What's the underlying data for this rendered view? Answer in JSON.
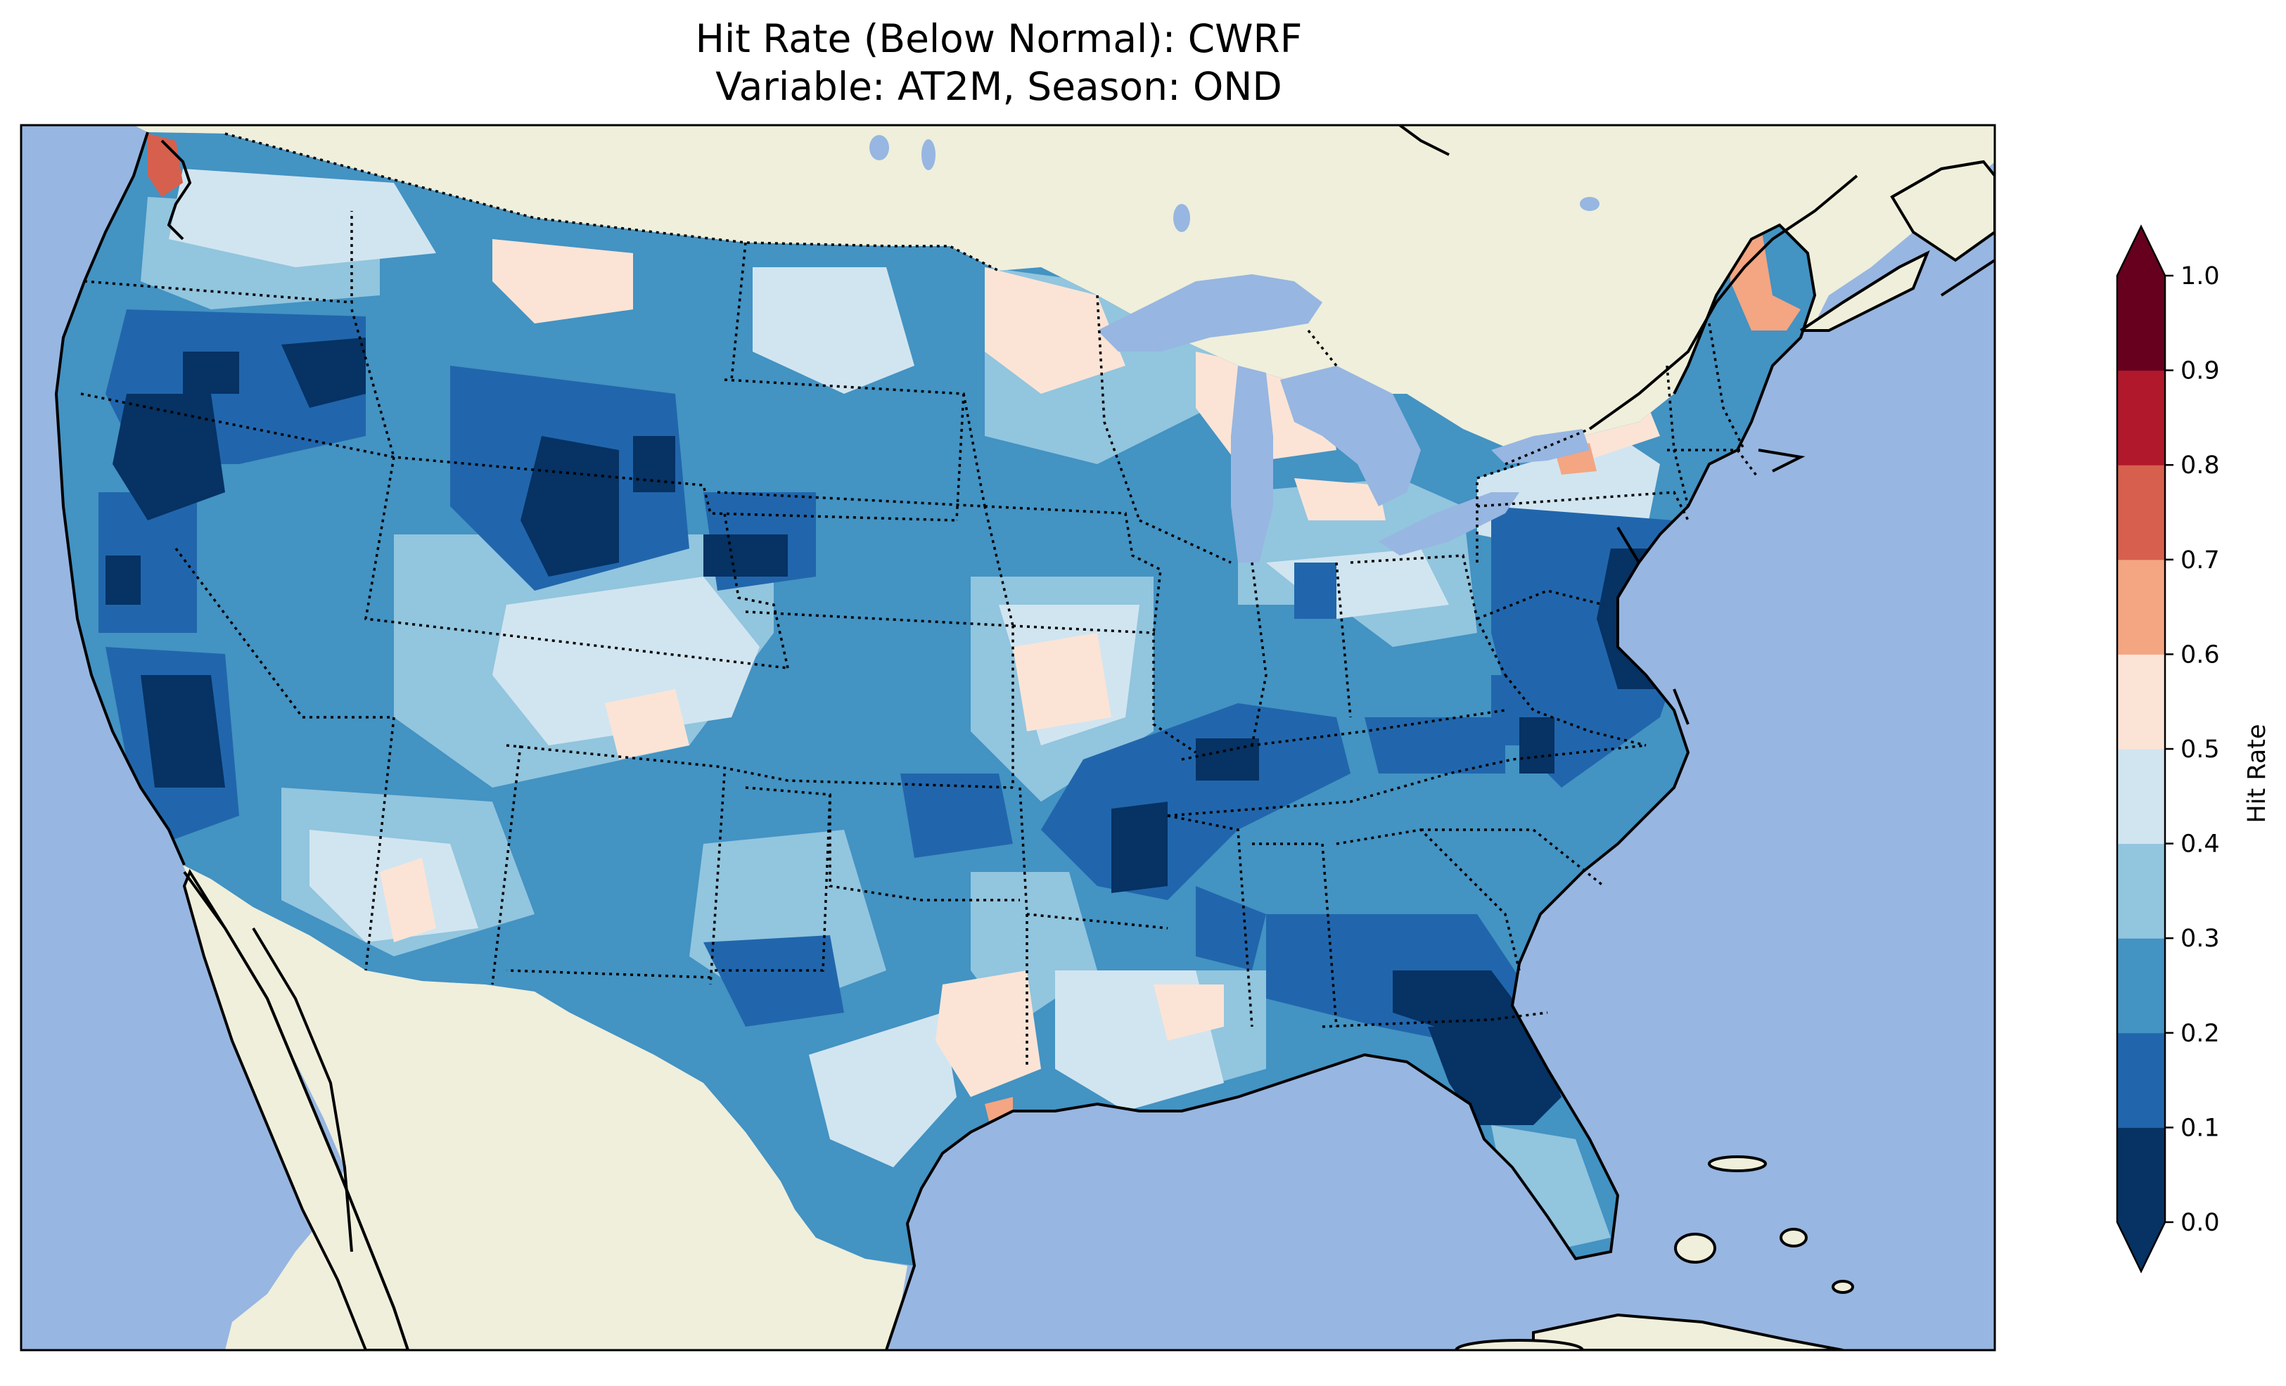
{
  "title_line1": "Hit Rate (Below Normal): CWRF",
  "title_line2": "Variable: AT2M, Season: OND",
  "colorbar": {
    "label": "Hit Rate",
    "ticks": [
      "0.0",
      "0.1",
      "0.2",
      "0.3",
      "0.4",
      "0.5",
      "0.6",
      "0.7",
      "0.8",
      "0.9",
      "1.0"
    ],
    "colors": [
      "#063264",
      "#2166ac",
      "#4393c3",
      "#92c5de",
      "#d1e5f0",
      "#fbe4d6",
      "#f4a582",
      "#d6604d",
      "#b2182b",
      "#67001f"
    ],
    "extend": "both"
  },
  "map": {
    "ocean_color": "#97b6e1",
    "land_color": "#efefdb",
    "projection": "CONUS lat-lon"
  }
}
